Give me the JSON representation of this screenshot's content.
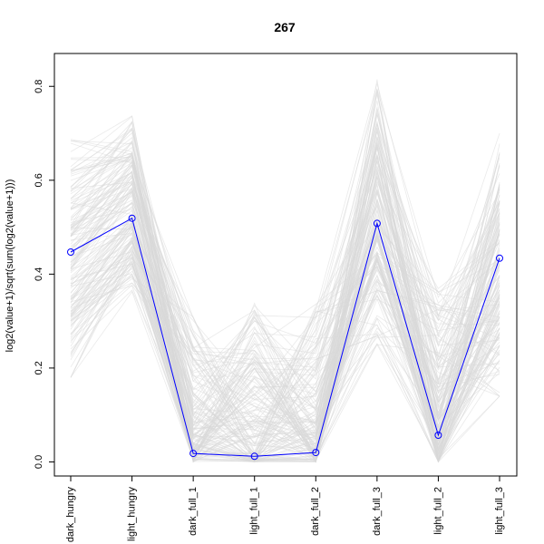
{
  "chart_data": {
    "type": "line",
    "title": "267",
    "xlabel": "",
    "ylabel": "log2(value+1)/sqrt(sum(log2(value+1)))",
    "categories": [
      "dark_hungry",
      "light_hungry",
      "dark_full_1",
      "light_full_1",
      "dark_full_2",
      "dark_full_3",
      "light_full_2",
      "light_full_3"
    ],
    "ylim": [
      -0.03,
      0.87
    ],
    "yticks": [
      0.0,
      0.2,
      0.4,
      0.6,
      0.8
    ],
    "ytick_labels": [
      "0.0",
      "0.2",
      "0.4",
      "0.6",
      "0.8"
    ],
    "highlight_color": "#0000ff",
    "background_line_color": "#d9d9d9",
    "series": [
      {
        "values": [
          0.447,
          0.519,
          0.018,
          0.012,
          0.02,
          0.508,
          0.057,
          0.434
        ],
        "color": "#0000ff",
        "highlight": true
      }
    ],
    "background_ranges": {
      "min": [
        0.18,
        0.35,
        0.0,
        0.0,
        0.0,
        0.25,
        0.0,
        0.14
      ],
      "max": [
        0.7,
        0.76,
        0.31,
        0.34,
        0.34,
        0.83,
        0.37,
        0.7
      ]
    }
  }
}
